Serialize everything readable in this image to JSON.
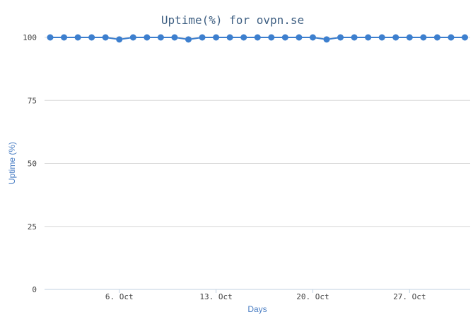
{
  "chart_data": {
    "type": "line",
    "title": "Uptime(%) for ovpn.se",
    "xlabel": "Days",
    "ylabel": "Uptime (%)",
    "ylim": [
      0,
      100
    ],
    "yticks": [
      "0",
      "25",
      "50",
      "75",
      "100"
    ],
    "xticks": [
      {
        "label": "6. Oct",
        "day": 6
      },
      {
        "label": "13. Oct",
        "day": 13
      },
      {
        "label": "20. Oct",
        "day": 20
      },
      {
        "label": "27. Oct",
        "day": 27
      }
    ],
    "x": [
      1,
      2,
      3,
      4,
      5,
      6,
      7,
      8,
      9,
      10,
      11,
      12,
      13,
      14,
      15,
      16,
      17,
      18,
      19,
      20,
      21,
      22,
      23,
      24,
      25,
      26,
      27,
      28,
      29,
      30,
      31
    ],
    "series": [
      {
        "values": [
          100,
          100,
          100,
          100,
          100,
          99.2,
          100,
          100,
          100,
          100,
          99.2,
          100,
          100,
          100,
          100,
          100,
          100,
          100,
          100,
          100,
          99.2,
          100,
          100,
          100,
          100,
          100,
          100,
          100,
          100,
          100,
          100
        ]
      }
    ],
    "grid": true,
    "colors": {
      "line": "#3d7fce",
      "point": "#3d7fce",
      "title": "#3e5f82",
      "axis_label": "#4a7ec4",
      "grid": "#d8d8d8",
      "axis_line": "#c0d0e0"
    }
  }
}
